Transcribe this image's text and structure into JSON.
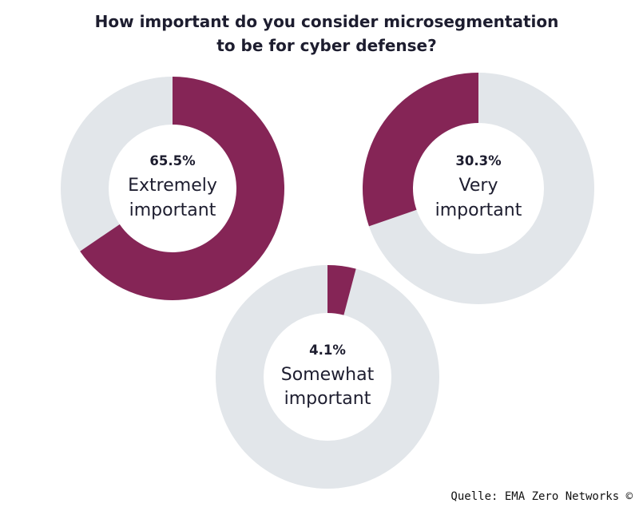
{
  "title_lines": [
    "How important do you consider microsegmentation",
    "to be for cyber defense?"
  ],
  "colors": {
    "value": "#852556",
    "track": "#e2e6ea"
  },
  "chart_data": {
    "type": "pie",
    "variant": "donut",
    "title": "How important do you consider microsegmentation to be for cyber defense?",
    "slices": [
      {
        "label_lines": [
          "Extremely",
          "important"
        ],
        "value": 65.5,
        "value_label": "65.5%"
      },
      {
        "label_lines": [
          "Very",
          "important"
        ],
        "value": 30.3,
        "value_label": "30.3%"
      },
      {
        "label_lines": [
          "Somewhat",
          "important"
        ],
        "value": 4.1,
        "value_label": "4.1%"
      }
    ]
  },
  "source": "Quelle: EMA Zero Networks ©"
}
